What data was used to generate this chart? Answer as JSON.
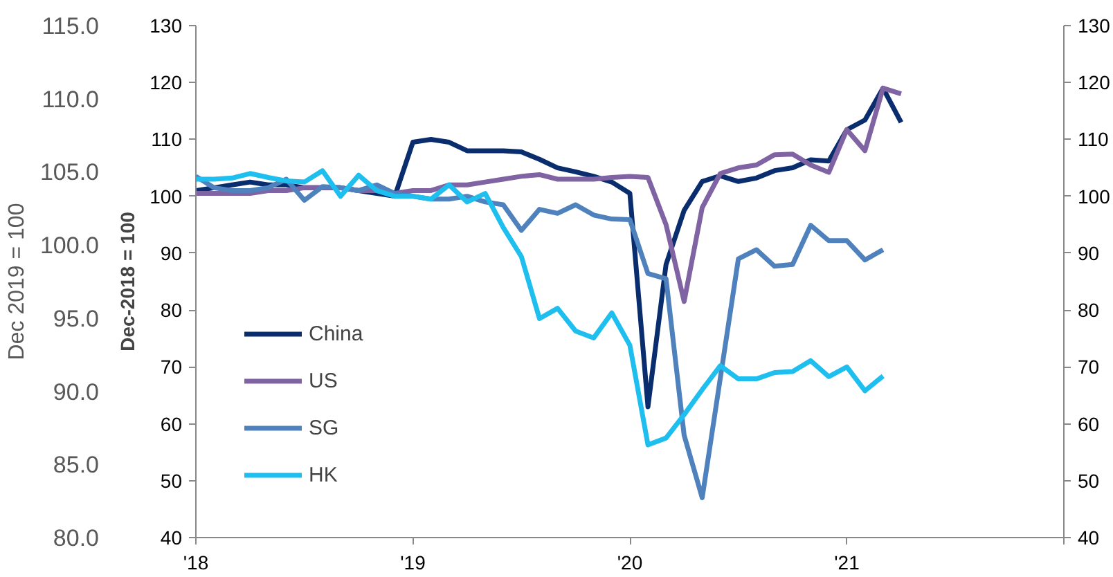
{
  "chart_data": {
    "type": "line",
    "ylabel": "Dec-2018 = 100",
    "y3label": "Dec 2019 = 100",
    "x": [
      "2018-01",
      "2018-02",
      "2018-03",
      "2018-04",
      "2018-05",
      "2018-06",
      "2018-07",
      "2018-08",
      "2018-09",
      "2018-10",
      "2018-11",
      "2018-12",
      "2019-01",
      "2019-02",
      "2019-03",
      "2019-04",
      "2019-05",
      "2019-06",
      "2019-07",
      "2019-08",
      "2019-09",
      "2019-10",
      "2019-11",
      "2019-12",
      "2020-01",
      "2020-02",
      "2020-03",
      "2020-04",
      "2020-05",
      "2020-06",
      "2020-07",
      "2020-08",
      "2020-09",
      "2020-10",
      "2020-11",
      "2020-12",
      "2021-01",
      "2021-02",
      "2021-03",
      "2021-04"
    ],
    "series": [
      {
        "name": "China",
        "color": "#0a2d6e",
        "values": [
          101,
          101.5,
          102,
          102.5,
          102,
          102,
          101.5,
          101.5,
          101.5,
          101,
          100.5,
          100,
          109.5,
          110,
          109.5,
          108,
          108,
          108,
          107.8,
          106.5,
          105,
          104.3,
          103.5,
          102.5,
          100.5,
          63,
          88,
          97.5,
          102.6,
          103.6,
          102.6,
          103.2,
          104.5,
          105,
          106.4,
          106.2,
          111.7,
          113.4,
          119,
          113
        ]
      },
      {
        "name": "US",
        "color": "#7f63a2",
        "values": [
          100.5,
          100.5,
          100.5,
          100.5,
          101,
          101,
          101.5,
          101.5,
          101.5,
          101,
          101,
          100.5,
          101,
          101,
          102,
          102,
          102.5,
          103,
          103.5,
          103.8,
          103,
          103,
          103,
          103.3,
          103.5,
          103.3,
          95,
          81.5,
          98,
          104,
          105,
          105.5,
          107.3,
          107.4,
          105.5,
          104.2,
          111.7,
          108,
          119,
          118
        ]
      },
      {
        "name": "SG",
        "color": "#4f81bd",
        "values": [
          103.5,
          101.5,
          101,
          101,
          101.5,
          103,
          99.3,
          101.7,
          101.5,
          101,
          102,
          100.5,
          100,
          99.5,
          99.5,
          100,
          99,
          98.5,
          94,
          97.7,
          97,
          98.5,
          96.7,
          96,
          95.9,
          86.4,
          85.5,
          58,
          47,
          68,
          89,
          90.6,
          87.7,
          88,
          94.9,
          92.2,
          92.2,
          88.8,
          90.6,
          null
        ]
      },
      {
        "name": "HK",
        "color": "#1ebeef",
        "values": [
          103,
          103,
          103.2,
          104,
          103.3,
          102.7,
          102.5,
          104.5,
          100,
          103.7,
          101,
          100,
          100,
          99.5,
          102,
          99,
          100.5,
          94.5,
          89.4,
          78.5,
          80.3,
          76.3,
          75.1,
          79.5,
          73.8,
          56.3,
          57.5,
          61.6,
          66,
          70.2,
          67.9,
          67.9,
          69,
          69.2,
          71.1,
          68.3,
          70,
          65.8,
          68.4,
          null
        ]
      }
    ],
    "xlim": [
      "2018-01",
      "2022-01"
    ],
    "xticks": [
      {
        "value": "2018-01",
        "label": "'18"
      },
      {
        "value": "2019-01",
        "label": "'19"
      },
      {
        "value": "2020-01",
        "label": "'20"
      },
      {
        "value": "2021-01",
        "label": "'21"
      },
      {
        "value": "2022-01",
        "label": null
      }
    ],
    "ylim": [
      40,
      130
    ],
    "yticks": [
      40,
      50,
      60,
      70,
      80,
      90,
      100,
      110,
      120,
      130
    ],
    "y2lim": [
      40,
      130
    ],
    "y2ticks": [
      40,
      50,
      60,
      70,
      80,
      90,
      100,
      110,
      120,
      130
    ],
    "y3lim": [
      80,
      115
    ],
    "y3ticks": [
      {
        "value": 80,
        "label": "80.0"
      },
      {
        "value": 85,
        "label": "85.0"
      },
      {
        "value": 90,
        "label": "90.0"
      },
      {
        "value": 95,
        "label": "95.0"
      },
      {
        "value": 100,
        "label": "100.0"
      },
      {
        "value": 105,
        "label": "105.0"
      },
      {
        "value": 110,
        "label": "110.0"
      },
      {
        "value": 115,
        "label": "115.0"
      }
    ],
    "legend": "left",
    "grid": false,
    "line_style": "solid",
    "marker": "none"
  }
}
